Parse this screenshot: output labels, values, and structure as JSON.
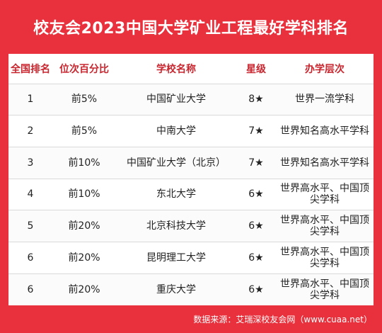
{
  "title": "校友会2023中国大学矿业工程最好学科排名",
  "table": {
    "headers": [
      "全国排名",
      "位次百分比",
      "学校名称",
      "星级",
      "办学层次"
    ],
    "rows": [
      [
        "1",
        "前5%",
        "中国矿业大学",
        "8★",
        "世界一流学科"
      ],
      [
        "2",
        "前5%",
        "中南大学",
        "7★",
        "世界知名高水平学科"
      ],
      [
        "3",
        "前10%",
        "中国矿业大学（北京）",
        "7★",
        "世界知名高水平学科"
      ],
      [
        "4",
        "前10%",
        "东北大学",
        "6★",
        "世界高水平、中国顶尖学科"
      ],
      [
        "5",
        "前20%",
        "北京科技大学",
        "6★",
        "世界高水平、中国顶尖学科"
      ],
      [
        "6",
        "前20%",
        "昆明理工大学",
        "6★",
        "世界高水平、中国顶尖学科"
      ],
      [
        "6",
        "前20%",
        "重庆大学",
        "6★",
        "世界高水平、中国顶尖学科"
      ]
    ]
  },
  "footer": "数据来源：艾瑞深校友会网（www.cuaa.net）"
}
